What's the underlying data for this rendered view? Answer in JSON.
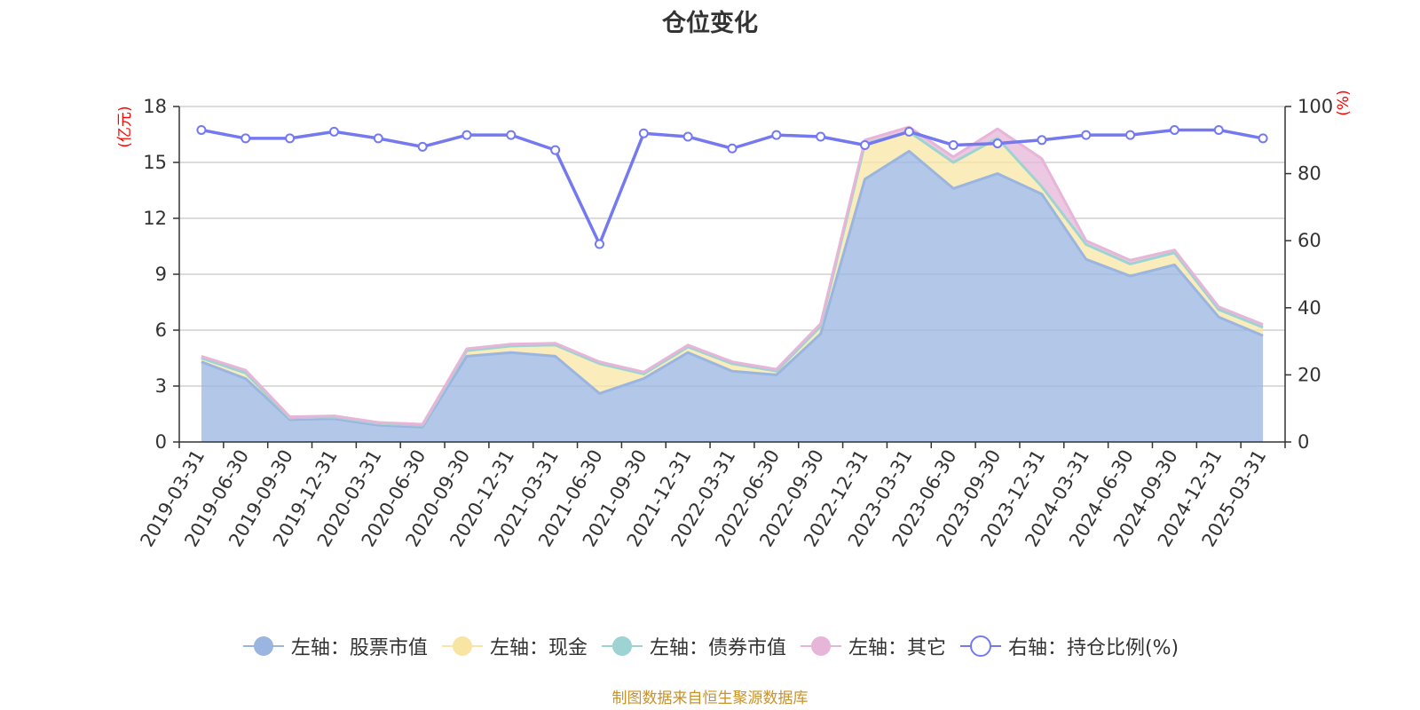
{
  "chart_data": {
    "type": "area",
    "title": "仓位变化",
    "left_axis": {
      "unit": "(亿元)",
      "ylim": [
        0,
        18
      ],
      "ticks": [
        0,
        3,
        6,
        9,
        12,
        15,
        18
      ]
    },
    "right_axis": {
      "unit": "(%)",
      "ylim": [
        0,
        100
      ],
      "ticks": [
        0,
        20,
        40,
        60,
        80,
        100
      ]
    },
    "categories": [
      "2019-03-31",
      "2019-06-30",
      "2019-09-30",
      "2019-12-31",
      "2020-03-31",
      "2020-06-30",
      "2020-09-30",
      "2020-12-31",
      "2021-03-31",
      "2021-06-30",
      "2021-09-30",
      "2021-12-31",
      "2022-03-31",
      "2022-06-30",
      "2022-09-30",
      "2022-12-31",
      "2023-03-31",
      "2023-06-30",
      "2023-09-30",
      "2023-12-31",
      "2024-03-31",
      "2024-06-30",
      "2024-09-30",
      "2024-12-31",
      "2025-03-31"
    ],
    "series": [
      {
        "name": "左轴：股票市值",
        "axis": "left",
        "stack": true,
        "color": "#9ab5e0",
        "values": [
          4.3,
          3.4,
          1.2,
          1.25,
          0.9,
          0.8,
          4.6,
          4.8,
          4.6,
          2.6,
          3.4,
          4.8,
          3.8,
          3.6,
          5.8,
          14.1,
          15.6,
          13.6,
          14.4,
          13.3,
          9.8,
          8.9,
          9.5,
          6.7,
          5.7
        ]
      },
      {
        "name": "左轴：现金",
        "axis": "left",
        "stack": true,
        "color": "#f8e5a4",
        "values": [
          0.2,
          0.3,
          0.1,
          0.1,
          0.1,
          0.1,
          0.3,
          0.35,
          0.6,
          1.6,
          0.25,
          0.3,
          0.4,
          0.2,
          0.4,
          1.9,
          1.05,
          1.4,
          1.9,
          0.4,
          0.8,
          0.65,
          0.65,
          0.4,
          0.45
        ]
      },
      {
        "name": "左轴：债券市值",
        "axis": "left",
        "stack": true,
        "color": "#9dd3d3",
        "values": [
          0,
          0,
          0,
          0,
          0,
          0,
          0,
          0,
          0,
          0,
          0,
          0,
          0,
          0,
          0,
          0,
          0,
          0,
          0,
          0,
          0,
          0,
          0,
          0,
          0
        ]
      },
      {
        "name": "左轴：其它",
        "axis": "left",
        "stack": true,
        "color": "#e6b5d8",
        "values": [
          0.1,
          0.15,
          0.05,
          0.05,
          0.05,
          0.05,
          0.1,
          0.1,
          0.1,
          0.1,
          0.1,
          0.1,
          0.1,
          0.1,
          0.15,
          0.2,
          0.25,
          0.3,
          0.5,
          1.5,
          0.2,
          0.2,
          0.15,
          0.15,
          0.15
        ]
      },
      {
        "name": "右轴：持仓比例(%)",
        "axis": "right",
        "type": "line",
        "color": "#7479f0",
        "values": [
          93.0,
          90.5,
          90.5,
          92.5,
          90.5,
          88.0,
          91.5,
          91.5,
          87.0,
          59.0,
          92.0,
          91.0,
          87.5,
          91.5,
          91.0,
          88.5,
          92.5,
          88.5,
          89.0,
          90.0,
          91.5,
          91.5,
          93.0,
          93.0,
          90.5
        ]
      }
    ],
    "grid": true,
    "legend_position": "bottom-center"
  },
  "source_note": "制图数据来自恒生聚源数据库"
}
